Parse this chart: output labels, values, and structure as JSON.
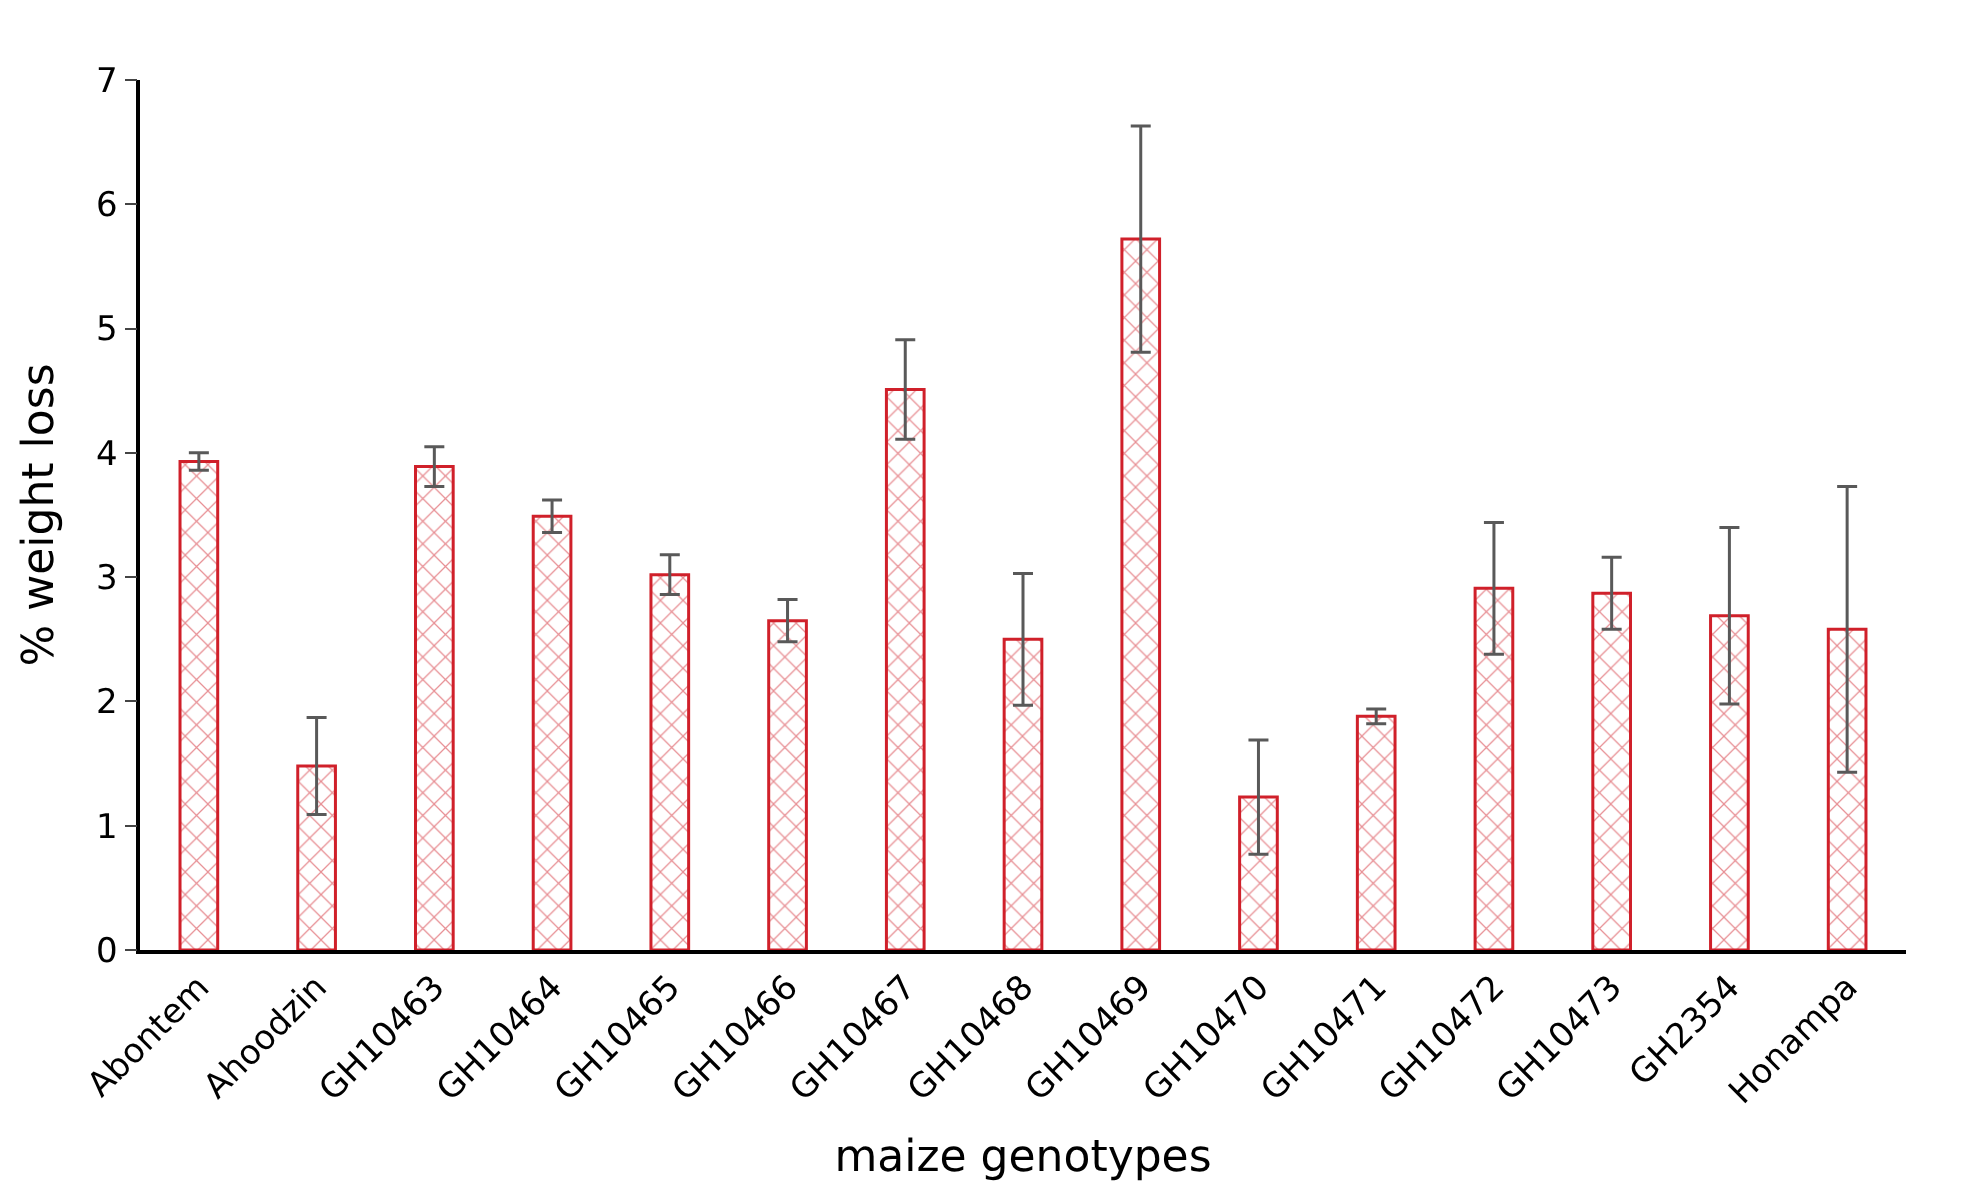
{
  "chart_data": {
    "type": "bar",
    "xlabel": "maize genotypes",
    "ylabel": "% weight loss",
    "categories": [
      "Abontem",
      "Ahoodzin",
      "GH10463",
      "GH10464",
      "GH10465",
      "GH10466",
      "GH10467",
      "GH10468",
      "GH10469",
      "GH10470",
      "GH10471",
      "GH10472",
      "GH10473",
      "GH2354",
      "Honampa"
    ],
    "values": [
      3.93,
      1.48,
      3.89,
      3.49,
      3.02,
      2.65,
      4.51,
      2.5,
      5.72,
      1.23,
      1.88,
      2.91,
      2.87,
      2.69,
      2.58
    ],
    "errors": [
      0.07,
      0.39,
      0.16,
      0.13,
      0.16,
      0.17,
      0.4,
      0.53,
      0.91,
      0.46,
      0.06,
      0.53,
      0.29,
      0.71,
      1.15
    ],
    "color": "#d0202a",
    "ylim": [
      0,
      7
    ],
    "yticks": [
      0,
      1,
      2,
      3,
      4,
      5,
      6,
      7
    ]
  }
}
